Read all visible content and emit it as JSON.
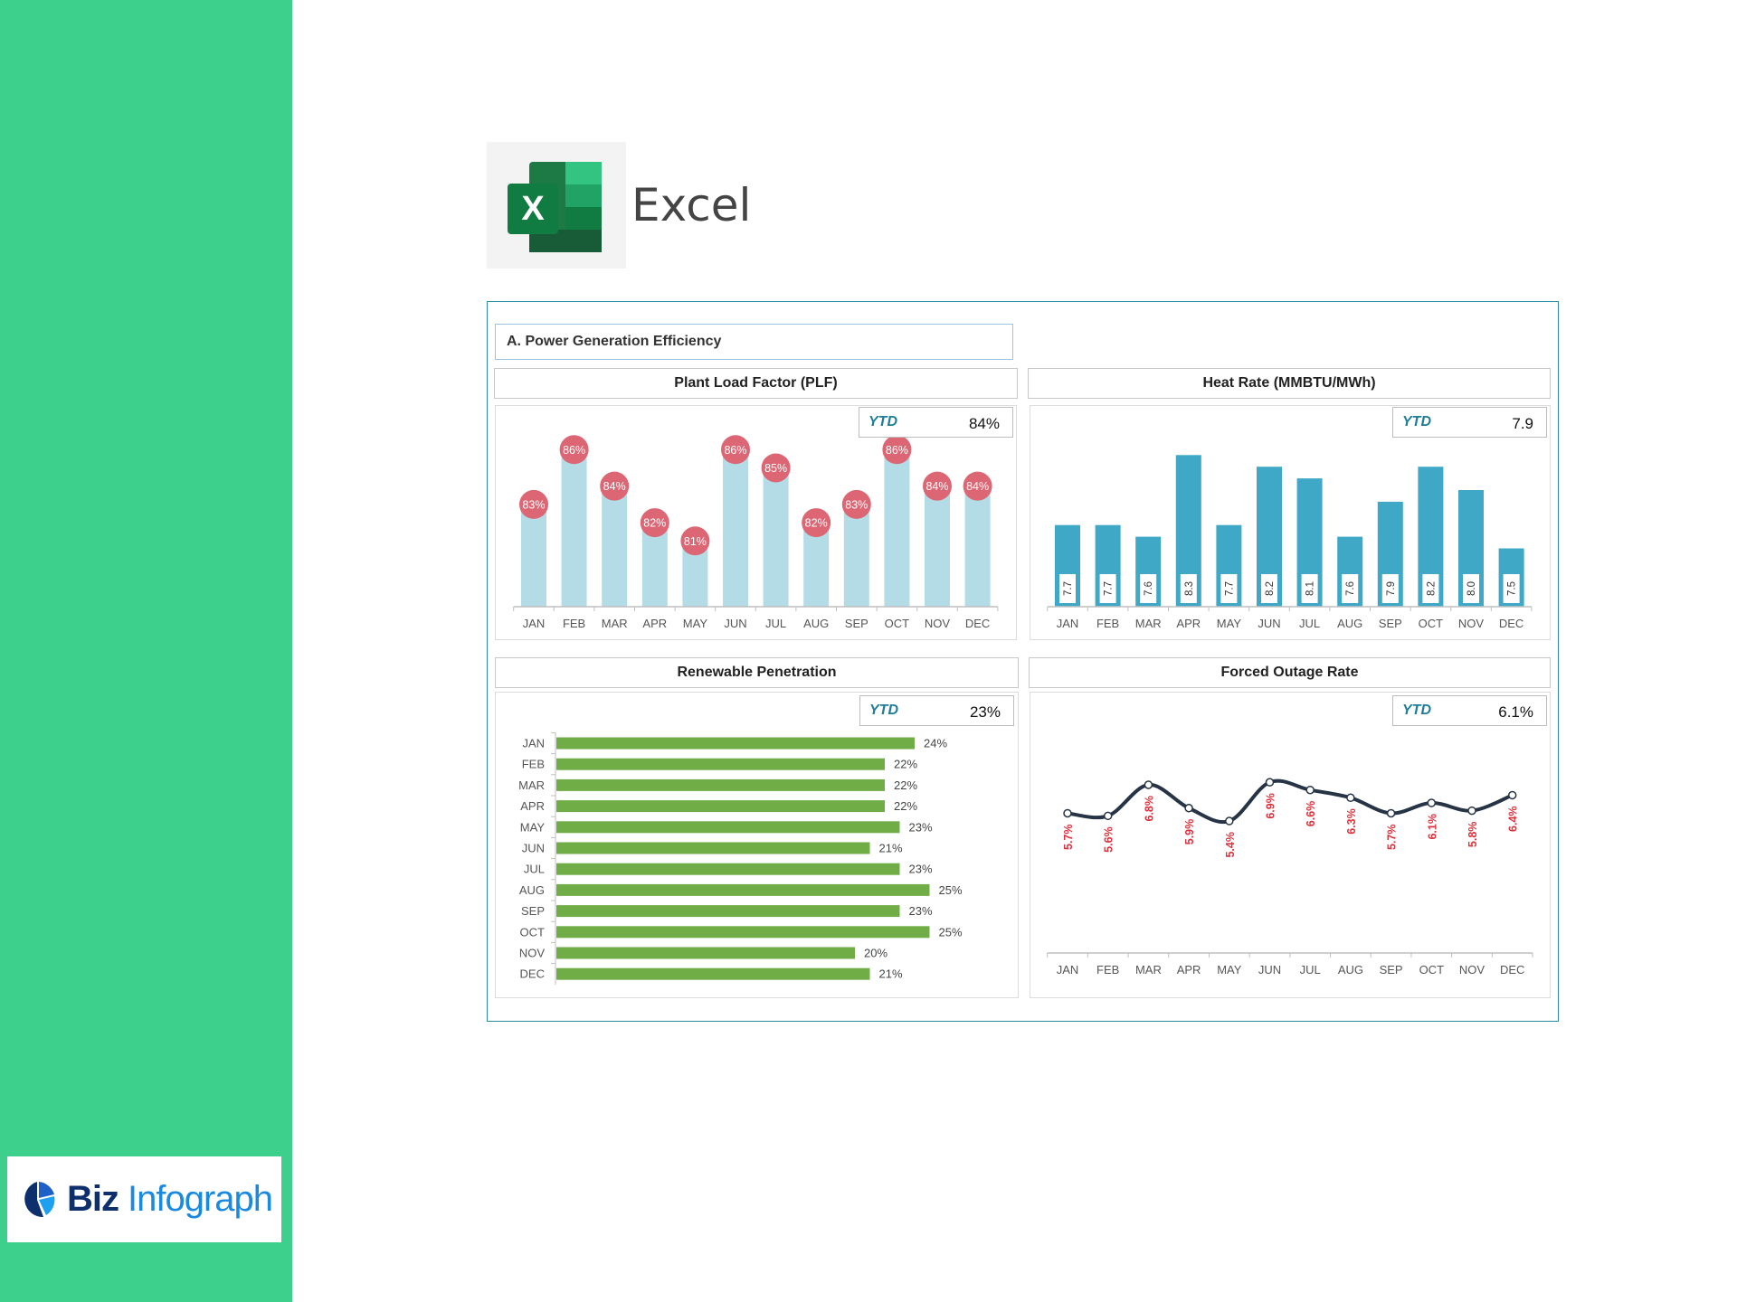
{
  "brand": {
    "excel_label": "Excel",
    "logo_text_1": "Biz",
    "logo_text_2": "Infograph"
  },
  "section_title": "A. Power Generation Efficiency",
  "colors": {
    "sidebar": "#3dd08c",
    "plf_bar": "#b3dce6",
    "plf_bubble": "#dc6674",
    "heat_bar": "#3fa8c6",
    "renew_bar": "#70ad47",
    "outage_line": "#263445",
    "outage_label": "#e0303c",
    "ytd": "#1f7d98"
  },
  "chart_data": [
    {
      "id": "plf",
      "type": "bar",
      "title": "Plant Load Factor (PLF)",
      "ytd_label": "YTD",
      "ytd_value": "84%",
      "categories": [
        "JAN",
        "FEB",
        "MAR",
        "APR",
        "MAY",
        "JUN",
        "JUL",
        "AUG",
        "SEP",
        "OCT",
        "NOV",
        "DEC"
      ],
      "values": [
        83,
        86,
        84,
        82,
        81,
        86,
        85,
        82,
        83,
        86,
        84,
        84
      ],
      "labels": [
        "83%",
        "86%",
        "84%",
        "82%",
        "81%",
        "86%",
        "85%",
        "82%",
        "83%",
        "86%",
        "84%",
        "84%"
      ],
      "unit": "%",
      "ylim": [
        77.4,
        90
      ]
    },
    {
      "id": "heat",
      "type": "bar",
      "title": "Heat Rate (MMBTU/MWh)",
      "ytd_label": "YTD",
      "ytd_value": "7.9",
      "categories": [
        "JAN",
        "FEB",
        "MAR",
        "APR",
        "MAY",
        "JUN",
        "JUL",
        "AUG",
        "SEP",
        "OCT",
        "NOV",
        "DEC"
      ],
      "values": [
        7.7,
        7.7,
        7.6,
        8.3,
        7.7,
        8.2,
        8.1,
        7.6,
        7.9,
        8.2,
        8.0,
        7.5
      ],
      "labels": [
        "7.7",
        "7.7",
        "7.6",
        "8.3",
        "7.7",
        "8.2",
        "8.1",
        "7.6",
        "7.9",
        "8.2",
        "8.0",
        "7.5"
      ],
      "ylim": [
        7.0,
        8.7
      ]
    },
    {
      "id": "renew",
      "type": "bar",
      "orientation": "horizontal",
      "title": "Renewable Penetration",
      "ytd_label": "YTD",
      "ytd_value": "23%",
      "categories": [
        "JAN",
        "FEB",
        "MAR",
        "APR",
        "MAY",
        "JUN",
        "JUL",
        "AUG",
        "SEP",
        "OCT",
        "NOV",
        "DEC"
      ],
      "values": [
        24,
        22,
        22,
        22,
        23,
        21,
        23,
        25,
        23,
        25,
        20,
        21
      ],
      "labels": [
        "24%",
        "22%",
        "22%",
        "22%",
        "23%",
        "21%",
        "23%",
        "25%",
        "23%",
        "25%",
        "20%",
        "21%"
      ],
      "unit": "%"
    },
    {
      "id": "outage",
      "type": "line",
      "title": "Forced Outage Rate",
      "ytd_label": "YTD",
      "ytd_value": "6.1%",
      "categories": [
        "JAN",
        "FEB",
        "MAR",
        "APR",
        "MAY",
        "JUN",
        "JUL",
        "AUG",
        "SEP",
        "OCT",
        "NOV",
        "DEC"
      ],
      "values": [
        5.7,
        5.6,
        6.8,
        5.9,
        5.4,
        6.9,
        6.6,
        6.3,
        5.7,
        6.1,
        5.8,
        6.4
      ],
      "labels": [
        "5.7%",
        "5.6%",
        "6.8%",
        "5.9%",
        "5.4%",
        "6.9%",
        "6.6%",
        "6.3%",
        "5.7%",
        "6.1%",
        "5.8%",
        "6.4%"
      ],
      "unit": "%"
    }
  ]
}
